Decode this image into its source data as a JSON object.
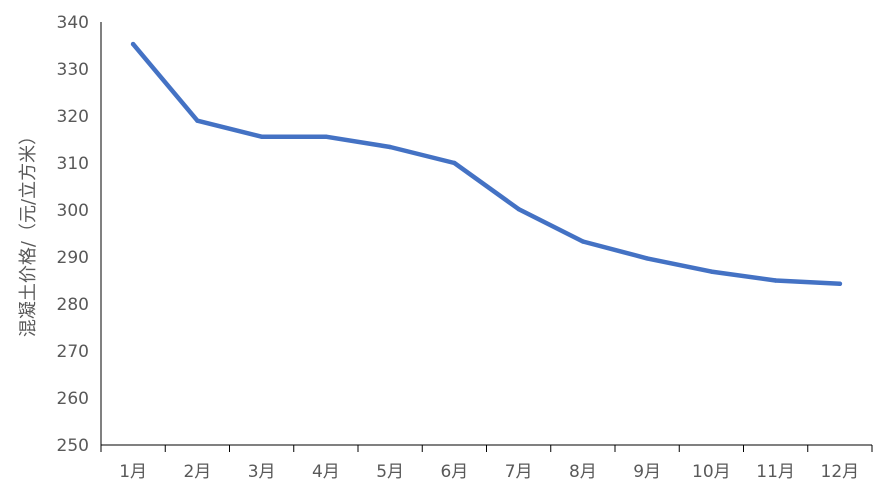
{
  "chart_data": {
    "type": "line",
    "title": "",
    "xlabel": "",
    "ylabel": "混凝土价格/（元/立方米）",
    "categories": [
      "1月",
      "2月",
      "3月",
      "4月",
      "5月",
      "6月",
      "7月",
      "8月",
      "9月",
      "10月",
      "11月",
      "12月"
    ],
    "series": [
      {
        "values": [
          335.3,
          319.0,
          315.6,
          315.6,
          313.4,
          310.0,
          300.2,
          293.3,
          289.7,
          286.9,
          285.0,
          284.3
        ]
      }
    ],
    "ylim": [
      250,
      340
    ],
    "yticks": [
      250,
      260,
      270,
      280,
      290,
      300,
      310,
      320,
      330,
      340
    ],
    "grid": false,
    "legend": "none",
    "colors": {
      "line": "#4472C4",
      "axis": "#000000",
      "text": "#595959"
    }
  }
}
